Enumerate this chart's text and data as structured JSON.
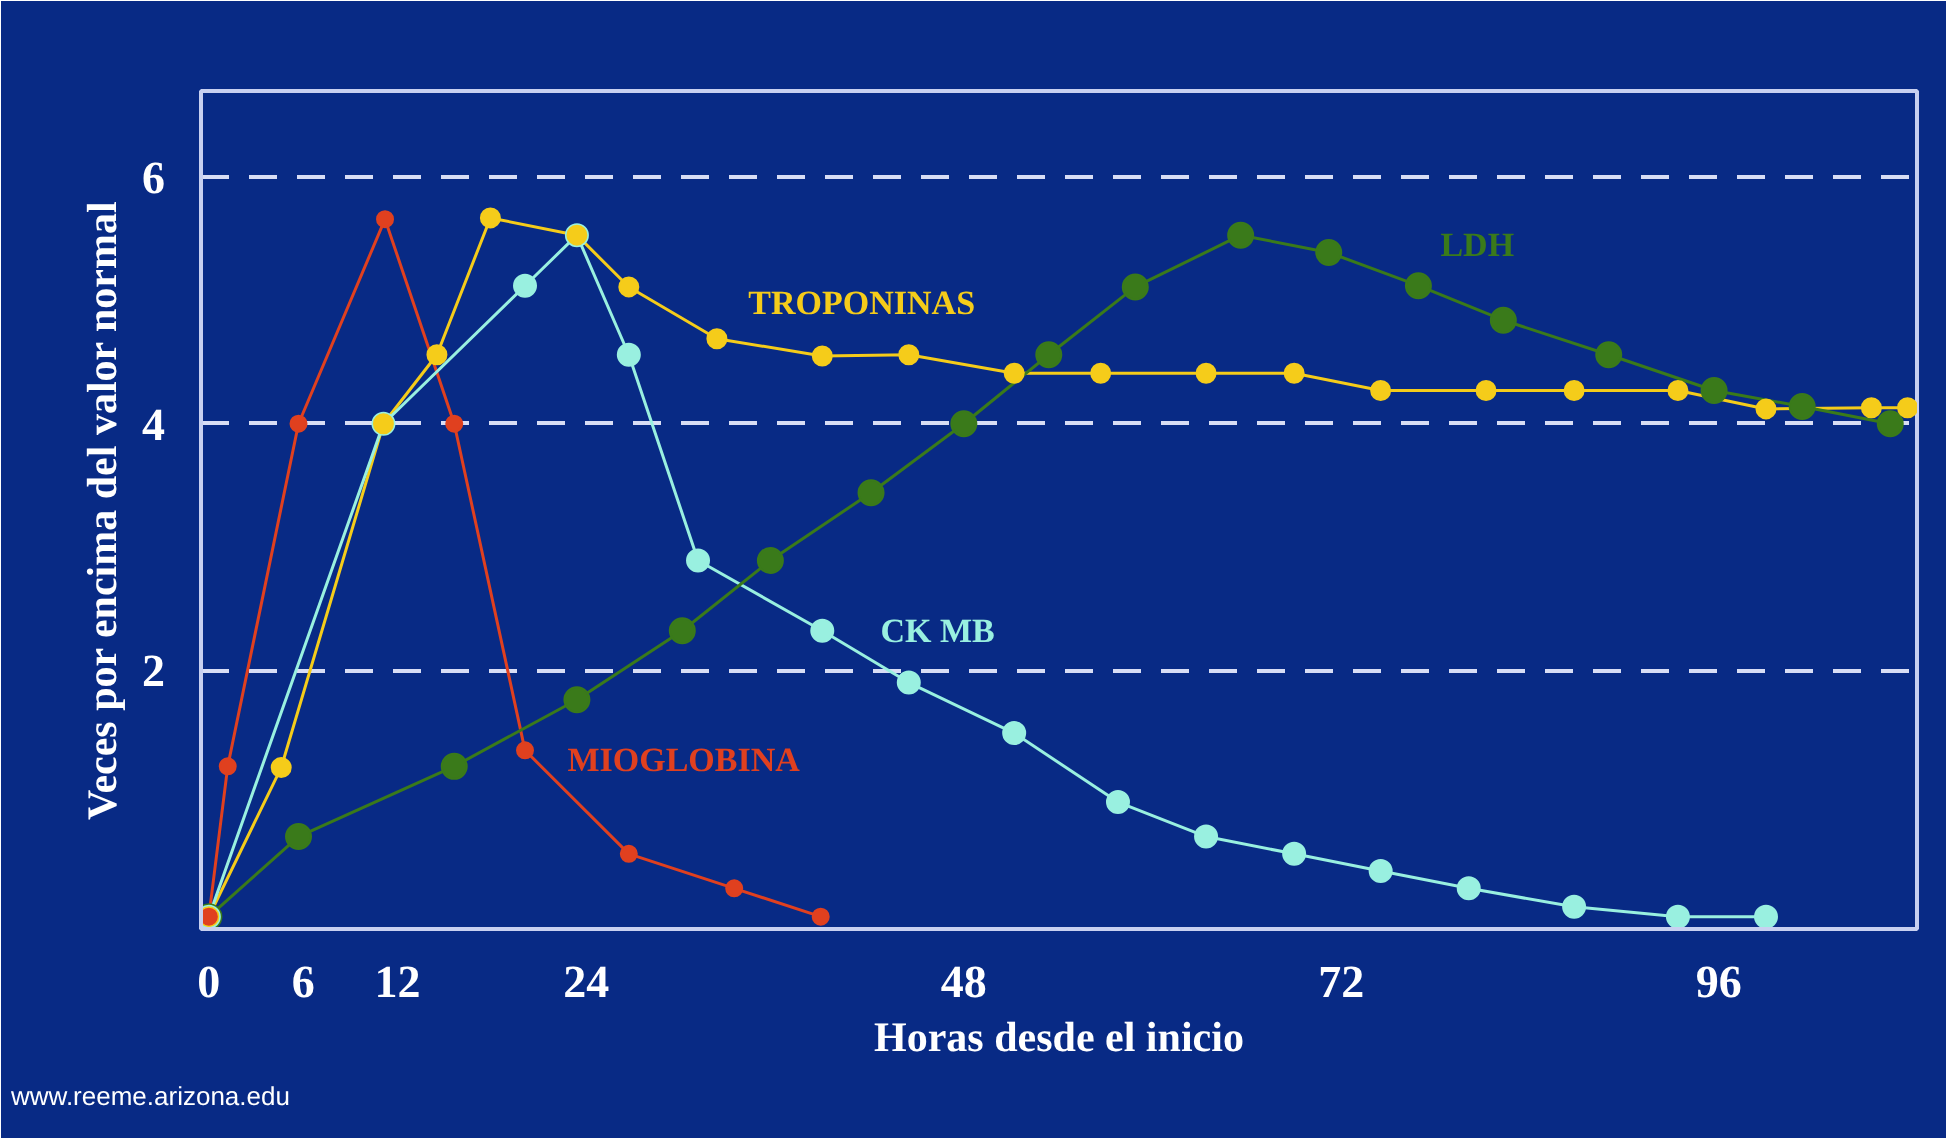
{
  "chart_data": {
    "type": "line",
    "xlabel": "Horas desde el inicio",
    "ylabel": "Veces por encima del valor normal",
    "xlim": [
      -0.5,
      108.6
    ],
    "ylim": [
      -0.1,
      6.7
    ],
    "xticks": [
      0,
      6,
      12,
      24,
      48,
      72,
      96
    ],
    "yticks": [
      2,
      4,
      6
    ],
    "grid": "y",
    "legend": false,
    "marker": "circle",
    "line_style": "solid",
    "annotations": [
      "www.reeme.arizona.edu"
    ],
    "series": [
      {
        "name": "MIOGLOBINA",
        "color": "#e0401f",
        "x": [
          0,
          1.2,
          5.7,
          11.2,
          15.6,
          20.1,
          26.7,
          33.4,
          38.9
        ],
        "values": [
          0,
          1.22,
          4.0,
          5.66,
          4.0,
          1.35,
          0.51,
          0.23,
          0
        ]
      },
      {
        "name": "TROPONINAS",
        "color": "#f5cc1a",
        "x": [
          0,
          4.6,
          11.1,
          14.5,
          17.9,
          23.4,
          26.7,
          32.3,
          39.0,
          44.5,
          51.2,
          56.7,
          63.4,
          69.0,
          74.5,
          81.2,
          86.8,
          93.4,
          99.0,
          105.7,
          108.0
        ],
        "values": [
          0,
          1.21,
          4.0,
          4.56,
          5.67,
          5.53,
          5.11,
          4.69,
          4.55,
          4.56,
          4.41,
          4.41,
          4.41,
          4.41,
          4.27,
          4.27,
          4.27,
          4.27,
          4.12,
          4.13,
          4.13
        ]
      },
      {
        "name": "CK MB",
        "color": "#99f0e0",
        "x": [
          0,
          11.1,
          20.1,
          23.4,
          26.7,
          31.1,
          39.0,
          44.5,
          51.2,
          57.8,
          63.4,
          69.0,
          74.5,
          80.1,
          86.8,
          93.4,
          99.0
        ],
        "values": [
          0,
          4.0,
          5.12,
          5.53,
          4.56,
          2.89,
          2.32,
          1.9,
          1.49,
          0.93,
          0.65,
          0.51,
          0.37,
          0.23,
          0.08,
          0,
          0
        ]
      },
      {
        "name": "LDH",
        "color": "#3a7a1a",
        "x": [
          0,
          5.7,
          15.6,
          23.4,
          30.1,
          35.7,
          42.1,
          48.0,
          53.4,
          58.9,
          65.6,
          71.2,
          76.9,
          82.3,
          89.0,
          95.7,
          101.3,
          106.9
        ],
        "values": [
          0,
          0.65,
          1.22,
          1.76,
          2.32,
          2.89,
          3.44,
          4.0,
          4.56,
          5.11,
          5.53,
          5.39,
          5.12,
          4.84,
          4.56,
          4.27,
          4.14,
          4.0
        ]
      }
    ]
  }
}
